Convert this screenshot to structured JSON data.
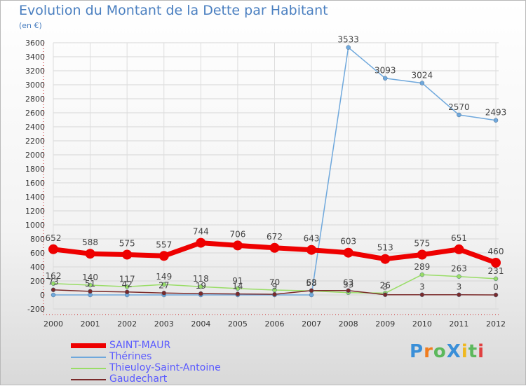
{
  "header": {
    "title": "Evolution du Montant de la Dette par Habitant",
    "subtitle": "(en €)"
  },
  "logo": {
    "text": "ProXiti",
    "letters": [
      {
        "ch": "P",
        "color": "#3a8fd8"
      },
      {
        "ch": "r",
        "color": "#f07c1e"
      },
      {
        "ch": "o",
        "color": "#5cb85c"
      },
      {
        "ch": "X",
        "color": "#3a8fd8"
      },
      {
        "ch": "i",
        "color": "#f0b81e"
      },
      {
        "ch": "t",
        "color": "#5cb85c"
      },
      {
        "ch": "i",
        "color": "#e04040"
      }
    ]
  },
  "chart_data": {
    "type": "line",
    "title": "Evolution du Montant de la Dette par Habitant",
    "subtitle": "(en €)",
    "xlabel": "",
    "ylabel": "",
    "x": [
      "2000",
      "2001",
      "2002",
      "2003",
      "2004",
      "2005",
      "2006",
      "2007",
      "2008",
      "2009",
      "2010",
      "2011",
      "2012"
    ],
    "ylim": [
      -200,
      3600
    ],
    "yticks": [
      -200,
      0,
      200,
      400,
      600,
      800,
      1000,
      1200,
      1400,
      1600,
      1800,
      2000,
      2200,
      2400,
      2600,
      2800,
      3000,
      3200,
      3400,
      3600
    ],
    "grid": true,
    "legend_position": "bottom-left",
    "series": [
      {
        "name": "SAINT-MAUR",
        "color": "#ee0000",
        "width": 7,
        "values": [
          652,
          588,
          575,
          557,
          744,
          706,
          672,
          643,
          603,
          513,
          575,
          651,
          460
        ],
        "labels": [
          "652",
          "588",
          "575",
          "557",
          "744",
          "706",
          "672",
          "643",
          "603",
          "513",
          "575",
          "651",
          "460"
        ]
      },
      {
        "name": "Thérines",
        "color": "#6fa8dc",
        "width": 1.5,
        "values": [
          0,
          0,
          0,
          0,
          0,
          0,
          0,
          0,
          3533,
          3093,
          3024,
          2570,
          2493
        ],
        "labels": [
          "",
          "",
          "",
          "",
          "",
          "",
          "",
          "",
          "3533",
          "3093",
          "3024",
          "2570",
          "2493"
        ]
      },
      {
        "name": "Thieuloy-Saint-Antoine",
        "color": "#99dd66",
        "width": 1.5,
        "values": [
          162,
          140,
          117,
          149,
          118,
          91,
          70,
          58,
          33,
          26,
          289,
          263,
          231
        ],
        "labels": [
          "162",
          "140",
          "117",
          "149",
          "118",
          "91",
          "70",
          "58",
          "33",
          "26",
          "289",
          "263",
          "231"
        ]
      },
      {
        "name": "Gaudechart",
        "color": "#7a2a2a",
        "width": 1.5,
        "values": [
          73,
          51,
          42,
          27,
          19,
          14,
          9,
          63,
          63,
          3,
          3,
          3,
          0
        ],
        "labels": [
          "73",
          "51",
          "42",
          "27",
          "19",
          "14",
          "9",
          "63",
          "63",
          "3",
          "3",
          "3",
          "0"
        ]
      }
    ]
  }
}
